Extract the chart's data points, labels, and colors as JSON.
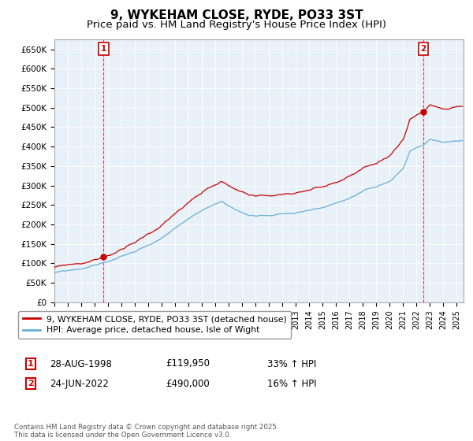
{
  "title": "9, WYKEHAM CLOSE, RYDE, PO33 3ST",
  "subtitle": "Price paid vs. HM Land Registry's House Price Index (HPI)",
  "ylim": [
    0,
    675000
  ],
  "yticks": [
    0,
    50000,
    100000,
    150000,
    200000,
    250000,
    300000,
    350000,
    400000,
    450000,
    500000,
    550000,
    600000,
    650000
  ],
  "ytick_labels": [
    "£0",
    "£50K",
    "£100K",
    "£150K",
    "£200K",
    "£250K",
    "£300K",
    "£350K",
    "£400K",
    "£450K",
    "£500K",
    "£550K",
    "£600K",
    "£650K"
  ],
  "xtick_years": [
    1995,
    1996,
    1997,
    1998,
    1999,
    2000,
    2001,
    2002,
    2003,
    2004,
    2005,
    2006,
    2007,
    2008,
    2009,
    2010,
    2011,
    2012,
    2013,
    2014,
    2015,
    2016,
    2017,
    2018,
    2019,
    2020,
    2021,
    2022,
    2023,
    2024,
    2025
  ],
  "sale1_year": 1998.667,
  "sale1_price": 119950,
  "sale2_year": 2022.5,
  "sale2_price": 490000,
  "sale1_date": "28-AUG-1998",
  "sale1_price_str": "£119,950",
  "sale1_pct": "33% ↑ HPI",
  "sale2_date": "24-JUN-2022",
  "sale2_price_str": "£490,000",
  "sale2_pct": "16% ↑ HPI",
  "hpi_line_color": "#6baed6",
  "price_line_color": "#cc0000",
  "marker_color": "#cc0000",
  "legend_label1": "9, WYKEHAM CLOSE, RYDE, PO33 3ST (detached house)",
  "legend_label2": "HPI: Average price, detached house, Isle of Wight",
  "footnote": "Contains HM Land Registry data © Crown copyright and database right 2025.\nThis data is licensed under the Open Government Licence v3.0.",
  "background_color": "#ffffff",
  "grid_color": "#c8d8e8",
  "title_fontsize": 11,
  "subtitle_fontsize": 9.5
}
